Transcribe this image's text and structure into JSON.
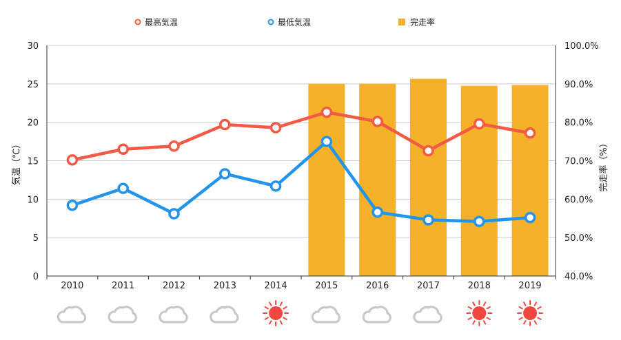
{
  "legend": {
    "high": "最高気温",
    "low": "最低気温",
    "rate": "完走率"
  },
  "colors": {
    "high": "#f25a45",
    "low": "#2394ee",
    "bar": "#f5b228",
    "sunny": "#f0483e",
    "cloudy": "#c8c8c8",
    "grid": "#cccccc",
    "axis": "#333333"
  },
  "axes": {
    "y_left_label": "気温（℃）",
    "y_right_label": "完走率（%）",
    "y_left_ticks": [
      "0",
      "5",
      "10",
      "15",
      "20",
      "25",
      "30"
    ],
    "y_right_ticks": [
      "40.0%",
      "50.0%",
      "60.0%",
      "70.0%",
      "80.0%",
      "90.0%",
      "100.0%"
    ]
  },
  "chart_data": {
    "type": "bar",
    "categories": [
      "2010",
      "2011",
      "2012",
      "2013",
      "2014",
      "2015",
      "2016",
      "2017",
      "2018",
      "2019"
    ],
    "series": [
      {
        "name": "最高気温",
        "type": "line",
        "axis": "left",
        "values": [
          15.1,
          16.5,
          16.9,
          19.7,
          19.3,
          21.3,
          20.1,
          16.3,
          19.8,
          18.6
        ]
      },
      {
        "name": "最低気温",
        "type": "line",
        "axis": "left",
        "values": [
          9.2,
          11.4,
          8.1,
          13.3,
          11.7,
          17.5,
          8.3,
          7.3,
          7.1,
          7.6
        ]
      },
      {
        "name": "完走率",
        "type": "bar",
        "axis": "right",
        "values": [
          null,
          null,
          null,
          null,
          null,
          90.0,
          90.0,
          91.3,
          89.5,
          89.7
        ]
      }
    ],
    "weather": [
      "cloudy",
      "cloudy",
      "cloudy",
      "cloudy",
      "sunny",
      "cloudy",
      "cloudy",
      "cloudy",
      "sunny",
      "sunny"
    ],
    "ylim_left": [
      0,
      30
    ],
    "ylim_right": [
      40,
      100
    ],
    "grid": true,
    "legend_position": "top"
  }
}
